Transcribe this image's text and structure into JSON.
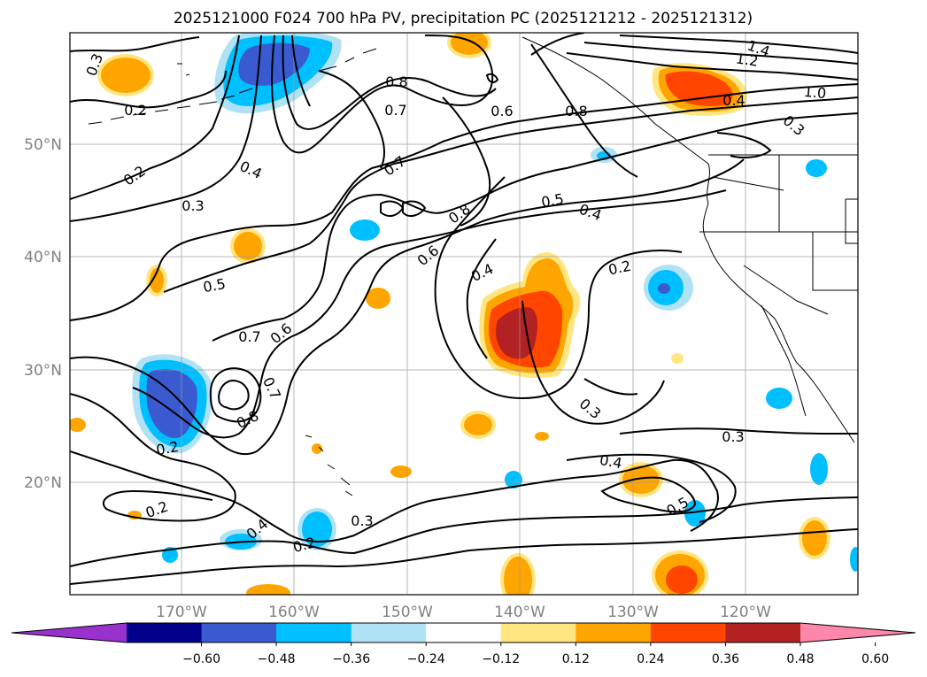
{
  "title": "2025121000 F024 700 hPa PV, precipitation PC (2025121212 - 2025121312)",
  "map": {
    "lon_labels": [
      "170°W",
      "160°W",
      "150°W",
      "140°W",
      "130°W",
      "120°W"
    ],
    "lat_labels": [
      "50°N",
      "40°N",
      "30°N",
      "20°N"
    ],
    "pv_contour_labels": [
      "0.3",
      "0.2",
      "0.8",
      "0.7",
      "0.6",
      "0.8",
      "1.4",
      "1.2",
      "1.0",
      "0.4",
      "0.3",
      "0.2",
      "0.4",
      "0.3",
      "0.7",
      "0.8",
      "0.5",
      "0.4",
      "0.6",
      "0.4",
      "0.2",
      "0.5",
      "0.7",
      "0.6",
      "0.7",
      "0.8",
      "0.2",
      "0.3",
      "0.3",
      "0.4",
      "0.2",
      "0.5",
      "0.4",
      "0.3",
      "0.2"
    ],
    "grid": true,
    "projection": "lat-lon"
  },
  "colorbar": {
    "ticks": [
      "−0.60",
      "−0.48",
      "−0.36",
      "−0.24",
      "−0.12",
      "0.12",
      "0.24",
      "0.36",
      "0.48",
      "0.60"
    ],
    "colors": [
      "#9932cc",
      "#00008b",
      "#3a5bd0",
      "#00bfff",
      "#b0e2f5",
      "#ffffff",
      "#ffe680",
      "#ffa500",
      "#ff4500",
      "#b22222",
      "#ff88aa"
    ],
    "extend": "both"
  }
}
